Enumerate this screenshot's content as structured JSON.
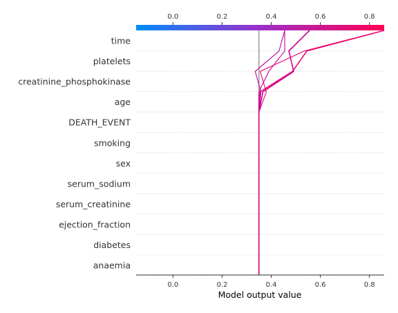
{
  "chart_data": {
    "type": "line",
    "subtype": "shap-decision-plot",
    "xlabel": "Model output value",
    "xlim": [
      -0.15,
      0.86
    ],
    "xticks": [
      0.0,
      0.2,
      0.4,
      0.6,
      0.8
    ],
    "xtick_labels": [
      "0.0",
      "0.2",
      "0.4",
      "0.6",
      "0.8"
    ],
    "base_value": 0.35,
    "features": [
      "time",
      "platelets",
      "creatinine_phosphokinase",
      "age",
      "DEATH_EVENT",
      "smoking",
      "sex",
      "serum_sodium",
      "serum_creatinine",
      "ejection_fraction",
      "diabetes",
      "anaemia"
    ],
    "colormap": {
      "low": "#008bfb",
      "mid": "#9b2fc9",
      "high": "#ff0052"
    },
    "series": [
      {
        "values": [
          0.86,
          0.545,
          0.487,
          0.355,
          0.35,
          0.35,
          0.35,
          0.35,
          0.35,
          0.35,
          0.35,
          0.35,
          0.35
        ],
        "color": "#f5006d"
      },
      {
        "values": [
          0.556,
          0.472,
          0.4915,
          0.366,
          0.35,
          0.35,
          0.35,
          0.35,
          0.35,
          0.35,
          0.35,
          0.35,
          0.35
        ],
        "color": "#cb0095"
      },
      {
        "values": [
          0.455,
          0.432,
          0.335,
          0.358,
          0.35,
          0.35,
          0.35,
          0.35,
          0.35,
          0.35,
          0.35,
          0.35,
          0.35
        ],
        "color": "#b800a3"
      },
      {
        "values": [
          0.455,
          0.455,
          0.39,
          0.35,
          0.35,
          0.35,
          0.35,
          0.35,
          0.35,
          0.35,
          0.35,
          0.35,
          0.35
        ],
        "color": "#c7009a"
      },
      {
        "values": [
          0.86,
          0.535,
          0.355,
          0.38,
          0.35,
          0.35,
          0.35,
          0.35,
          0.35,
          0.35,
          0.35,
          0.35,
          0.35
        ],
        "color": "#ec0070"
      }
    ]
  }
}
